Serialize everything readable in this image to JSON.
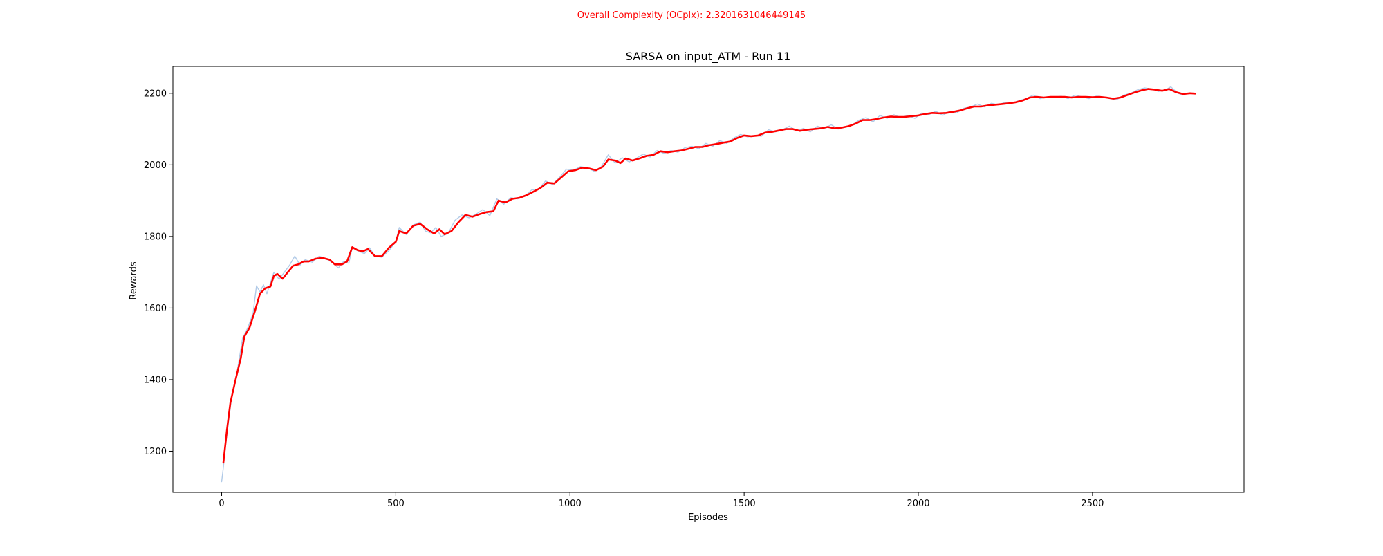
{
  "header": {
    "complexity_text": "Overall Complexity (OCplx): 2.3201631046449145",
    "complexity_color": "#ff0000"
  },
  "chart_data": {
    "type": "line",
    "title": "SARSA on input_ATM - Run 11",
    "xlabel": "Episodes",
    "ylabel": "Rewards",
    "xlim": [
      -140,
      2935
    ],
    "ylim": [
      1085,
      2275
    ],
    "xticks": [
      0,
      500,
      1000,
      1500,
      2000,
      2500
    ],
    "yticks": [
      1200,
      1400,
      1600,
      1800,
      2000,
      2200
    ],
    "grid": false,
    "legend": "none",
    "series": [
      {
        "role": "raw",
        "color": "#a9c4e4",
        "points": [
          [
            0,
            1115
          ],
          [
            5,
            1155
          ],
          [
            10,
            1205
          ],
          [
            20,
            1285
          ],
          [
            30,
            1360
          ],
          [
            45,
            1425
          ],
          [
            60,
            1515
          ],
          [
            75,
            1545
          ],
          [
            90,
            1585
          ],
          [
            100,
            1662
          ],
          [
            110,
            1645
          ],
          [
            120,
            1665
          ],
          [
            130,
            1640
          ],
          [
            140,
            1670
          ],
          [
            150,
            1700
          ],
          [
            165,
            1680
          ],
          [
            180,
            1700
          ],
          [
            195,
            1720
          ],
          [
            210,
            1745
          ],
          [
            225,
            1720
          ],
          [
            240,
            1735
          ],
          [
            260,
            1728
          ],
          [
            280,
            1745
          ],
          [
            300,
            1738
          ],
          [
            320,
            1725
          ],
          [
            335,
            1712
          ],
          [
            350,
            1730
          ],
          [
            365,
            1725
          ],
          [
            375,
            1768
          ],
          [
            390,
            1760
          ],
          [
            410,
            1752
          ],
          [
            425,
            1768
          ],
          [
            440,
            1745
          ],
          [
            460,
            1742
          ],
          [
            480,
            1760
          ],
          [
            500,
            1785
          ],
          [
            510,
            1825
          ],
          [
            530,
            1805
          ],
          [
            550,
            1832
          ],
          [
            570,
            1840
          ],
          [
            585,
            1815
          ],
          [
            600,
            1810
          ],
          [
            615,
            1825
          ],
          [
            630,
            1800
          ],
          [
            650,
            1808
          ],
          [
            670,
            1845
          ],
          [
            690,
            1860
          ],
          [
            710,
            1852
          ],
          [
            730,
            1862
          ],
          [
            750,
            1875
          ],
          [
            770,
            1858
          ],
          [
            790,
            1905
          ],
          [
            810,
            1890
          ],
          [
            830,
            1908
          ],
          [
            850,
            1905
          ],
          [
            870,
            1912
          ],
          [
            890,
            1930
          ],
          [
            910,
            1932
          ],
          [
            930,
            1955
          ],
          [
            950,
            1945
          ],
          [
            970,
            1965
          ],
          [
            990,
            1988
          ],
          [
            1010,
            1985
          ],
          [
            1030,
            1995
          ],
          [
            1050,
            1992
          ],
          [
            1070,
            1982
          ],
          [
            1090,
            1995
          ],
          [
            1110,
            2028
          ],
          [
            1130,
            2005
          ],
          [
            1150,
            2020
          ],
          [
            1170,
            2008
          ],
          [
            1190,
            2018
          ],
          [
            1210,
            2030
          ],
          [
            1230,
            2022
          ],
          [
            1250,
            2040
          ],
          [
            1270,
            2032
          ],
          [
            1290,
            2040
          ],
          [
            1310,
            2035
          ],
          [
            1330,
            2048
          ],
          [
            1350,
            2052
          ],
          [
            1370,
            2045
          ],
          [
            1390,
            2060
          ],
          [
            1410,
            2052
          ],
          [
            1430,
            2068
          ],
          [
            1450,
            2060
          ],
          [
            1470,
            2075
          ],
          [
            1490,
            2085
          ],
          [
            1510,
            2078
          ],
          [
            1530,
            2082
          ],
          [
            1550,
            2080
          ],
          [
            1570,
            2098
          ],
          [
            1590,
            2092
          ],
          [
            1610,
            2098
          ],
          [
            1630,
            2108
          ],
          [
            1650,
            2095
          ],
          [
            1670,
            2102
          ],
          [
            1690,
            2092
          ],
          [
            1710,
            2108
          ],
          [
            1730,
            2102
          ],
          [
            1750,
            2112
          ],
          [
            1770,
            2100
          ],
          [
            1790,
            2105
          ],
          [
            1810,
            2112
          ],
          [
            1830,
            2125
          ],
          [
            1850,
            2132
          ],
          [
            1870,
            2120
          ],
          [
            1890,
            2138
          ],
          [
            1910,
            2130
          ],
          [
            1930,
            2140
          ],
          [
            1950,
            2132
          ],
          [
            1970,
            2138
          ],
          [
            1990,
            2130
          ],
          [
            2010,
            2145
          ],
          [
            2030,
            2140
          ],
          [
            2050,
            2150
          ],
          [
            2070,
            2138
          ],
          [
            2090,
            2150
          ],
          [
            2110,
            2145
          ],
          [
            2130,
            2158
          ],
          [
            2150,
            2162
          ],
          [
            2170,
            2170
          ],
          [
            2190,
            2162
          ],
          [
            2210,
            2172
          ],
          [
            2230,
            2168
          ],
          [
            2250,
            2175
          ],
          [
            2270,
            2172
          ],
          [
            2290,
            2180
          ],
          [
            2310,
            2185
          ],
          [
            2330,
            2195
          ],
          [
            2350,
            2185
          ],
          [
            2370,
            2190
          ],
          [
            2390,
            2188
          ],
          [
            2410,
            2192
          ],
          [
            2430,
            2185
          ],
          [
            2450,
            2195
          ],
          [
            2470,
            2190
          ],
          [
            2490,
            2185
          ],
          [
            2510,
            2192
          ],
          [
            2530,
            2190
          ],
          [
            2550,
            2185
          ],
          [
            2570,
            2182
          ],
          [
            2590,
            2195
          ],
          [
            2610,
            2200
          ],
          [
            2630,
            2210
          ],
          [
            2650,
            2215
          ],
          [
            2670,
            2212
          ],
          [
            2690,
            2205
          ],
          [
            2710,
            2210
          ],
          [
            2725,
            2218
          ],
          [
            2745,
            2200
          ],
          [
            2760,
            2195
          ],
          [
            2775,
            2200
          ],
          [
            2795,
            2198
          ]
        ]
      },
      {
        "role": "smoothed",
        "color": "#ff0000",
        "points": [
          [
            5,
            1168
          ],
          [
            15,
            1258
          ],
          [
            25,
            1335
          ],
          [
            40,
            1400
          ],
          [
            55,
            1460
          ],
          [
            65,
            1520
          ],
          [
            80,
            1545
          ],
          [
            95,
            1590
          ],
          [
            110,
            1640
          ],
          [
            125,
            1655
          ],
          [
            140,
            1660
          ],
          [
            150,
            1690
          ],
          [
            160,
            1695
          ],
          [
            175,
            1682
          ],
          [
            190,
            1700
          ],
          [
            205,
            1718
          ],
          [
            220,
            1722
          ],
          [
            235,
            1730
          ],
          [
            250,
            1730
          ],
          [
            270,
            1738
          ],
          [
            290,
            1740
          ],
          [
            310,
            1735
          ],
          [
            325,
            1722
          ],
          [
            345,
            1722
          ],
          [
            360,
            1730
          ],
          [
            375,
            1770
          ],
          [
            390,
            1762
          ],
          [
            405,
            1758
          ],
          [
            420,
            1765
          ],
          [
            440,
            1745
          ],
          [
            460,
            1745
          ],
          [
            480,
            1768
          ],
          [
            500,
            1785
          ],
          [
            510,
            1815
          ],
          [
            530,
            1808
          ],
          [
            550,
            1830
          ],
          [
            570,
            1835
          ],
          [
            590,
            1820
          ],
          [
            610,
            1808
          ],
          [
            625,
            1820
          ],
          [
            640,
            1806
          ],
          [
            660,
            1815
          ],
          [
            680,
            1840
          ],
          [
            700,
            1860
          ],
          [
            720,
            1855
          ],
          [
            740,
            1862
          ],
          [
            760,
            1868
          ],
          [
            780,
            1870
          ],
          [
            795,
            1900
          ],
          [
            815,
            1895
          ],
          [
            835,
            1905
          ],
          [
            855,
            1908
          ],
          [
            875,
            1915
          ],
          [
            895,
            1925
          ],
          [
            915,
            1935
          ],
          [
            935,
            1950
          ],
          [
            955,
            1948
          ],
          [
            975,
            1965
          ],
          [
            995,
            1982
          ],
          [
            1015,
            1985
          ],
          [
            1035,
            1992
          ],
          [
            1055,
            1990
          ],
          [
            1075,
            1985
          ],
          [
            1095,
            1995
          ],
          [
            1110,
            2015
          ],
          [
            1130,
            2012
          ],
          [
            1145,
            2005
          ],
          [
            1160,
            2018
          ],
          [
            1180,
            2012
          ],
          [
            1200,
            2018
          ],
          [
            1220,
            2025
          ],
          [
            1240,
            2028
          ],
          [
            1260,
            2038
          ],
          [
            1280,
            2035
          ],
          [
            1300,
            2038
          ],
          [
            1320,
            2040
          ],
          [
            1340,
            2045
          ],
          [
            1360,
            2050
          ],
          [
            1380,
            2050
          ],
          [
            1400,
            2055
          ],
          [
            1420,
            2058
          ],
          [
            1440,
            2062
          ],
          [
            1460,
            2065
          ],
          [
            1480,
            2075
          ],
          [
            1500,
            2082
          ],
          [
            1520,
            2080
          ],
          [
            1540,
            2082
          ],
          [
            1560,
            2090
          ],
          [
            1580,
            2092
          ],
          [
            1600,
            2096
          ],
          [
            1620,
            2100
          ],
          [
            1640,
            2100
          ],
          [
            1660,
            2095
          ],
          [
            1680,
            2098
          ],
          [
            1700,
            2100
          ],
          [
            1720,
            2102
          ],
          [
            1740,
            2106
          ],
          [
            1760,
            2102
          ],
          [
            1780,
            2104
          ],
          [
            1800,
            2108
          ],
          [
            1820,
            2115
          ],
          [
            1840,
            2125
          ],
          [
            1860,
            2125
          ],
          [
            1880,
            2128
          ],
          [
            1900,
            2132
          ],
          [
            1920,
            2135
          ],
          [
            1940,
            2134
          ],
          [
            1960,
            2134
          ],
          [
            1980,
            2136
          ],
          [
            2000,
            2138
          ],
          [
            2020,
            2142
          ],
          [
            2040,
            2145
          ],
          [
            2060,
            2144
          ],
          [
            2080,
            2145
          ],
          [
            2100,
            2148
          ],
          [
            2120,
            2152
          ],
          [
            2140,
            2158
          ],
          [
            2160,
            2163
          ],
          [
            2180,
            2163
          ],
          [
            2200,
            2166
          ],
          [
            2220,
            2168
          ],
          [
            2240,
            2170
          ],
          [
            2260,
            2172
          ],
          [
            2280,
            2175
          ],
          [
            2300,
            2180
          ],
          [
            2320,
            2188
          ],
          [
            2340,
            2190
          ],
          [
            2360,
            2188
          ],
          [
            2380,
            2190
          ],
          [
            2400,
            2190
          ],
          [
            2420,
            2190
          ],
          [
            2440,
            2188
          ],
          [
            2460,
            2190
          ],
          [
            2480,
            2190
          ],
          [
            2500,
            2189
          ],
          [
            2520,
            2190
          ],
          [
            2540,
            2188
          ],
          [
            2560,
            2185
          ],
          [
            2580,
            2188
          ],
          [
            2600,
            2195
          ],
          [
            2620,
            2202
          ],
          [
            2640,
            2208
          ],
          [
            2660,
            2212
          ],
          [
            2680,
            2210
          ],
          [
            2700,
            2207
          ],
          [
            2720,
            2212
          ],
          [
            2740,
            2203
          ],
          [
            2760,
            2198
          ],
          [
            2780,
            2200
          ],
          [
            2795,
            2199
          ]
        ]
      }
    ]
  }
}
